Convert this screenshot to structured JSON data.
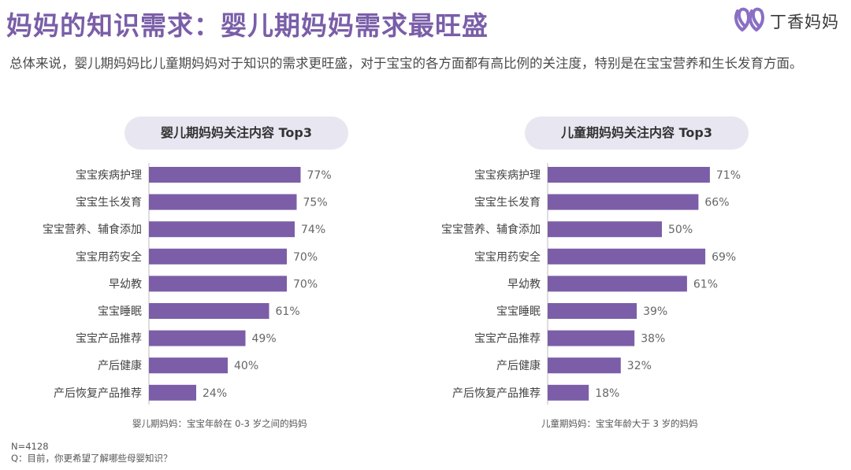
{
  "header": {
    "title": "妈妈的知识需求：婴儿期妈妈需求最旺盛",
    "brand": "丁香妈妈",
    "subtitle": "总体来说，婴儿期妈妈比儿童期妈妈对于知识的需求更旺盛，对于宝宝的各方面都有高比例的关注度，特别是在宝宝营养和生长发育方面。"
  },
  "colors": {
    "accent": "#7a5ea8",
    "bar": "#7b5ea7",
    "pill": "#e8e6f0"
  },
  "left_panel": {
    "heading": "婴儿期妈妈关注内容 Top3",
    "note": "婴儿期妈妈：宝宝年龄在 0-3 岁之间的妈妈"
  },
  "right_panel": {
    "heading": "儿童期妈妈关注内容 Top3",
    "note": "儿童期妈妈：宝宝年龄大于 3 岁的妈妈"
  },
  "footer": {
    "sample": "N=4128",
    "question": "Q：目前，你更希望了解哪些母婴知识？"
  },
  "chart_data": [
    {
      "type": "bar",
      "orientation": "horizontal",
      "title": "婴儿期妈妈关注内容 Top3",
      "categories": [
        "宝宝疾病护理",
        "宝宝生长发育",
        "宝宝营养、辅食添加",
        "宝宝用药安全",
        "早幼教",
        "宝宝睡眠",
        "宝宝产品推荐",
        "产后健康",
        "产后恢复产品推荐"
      ],
      "values": [
        77,
        75,
        74,
        70,
        70,
        61,
        49,
        40,
        24
      ],
      "value_labels": [
        "77%",
        "75%",
        "74%",
        "70%",
        "70%",
        "61%",
        "49%",
        "40%",
        "24%"
      ],
      "unit": "%",
      "xlim": [
        0,
        100
      ]
    },
    {
      "type": "bar",
      "orientation": "horizontal",
      "title": "儿童期妈妈关注内容 Top3",
      "categories": [
        "宝宝疾病护理",
        "宝宝生长发育",
        "宝宝营养、辅食添加",
        "宝宝用药安全",
        "早幼教",
        "宝宝睡眠",
        "宝宝产品推荐",
        "产后健康",
        "产后恢复产品推荐"
      ],
      "values": [
        71,
        66,
        50,
        69,
        61,
        39,
        38,
        32,
        18
      ],
      "value_labels": [
        "71%",
        "66%",
        "50%",
        "69%",
        "61%",
        "39%",
        "38%",
        "32%",
        "18%"
      ],
      "unit": "%",
      "xlim": [
        0,
        100
      ]
    }
  ]
}
